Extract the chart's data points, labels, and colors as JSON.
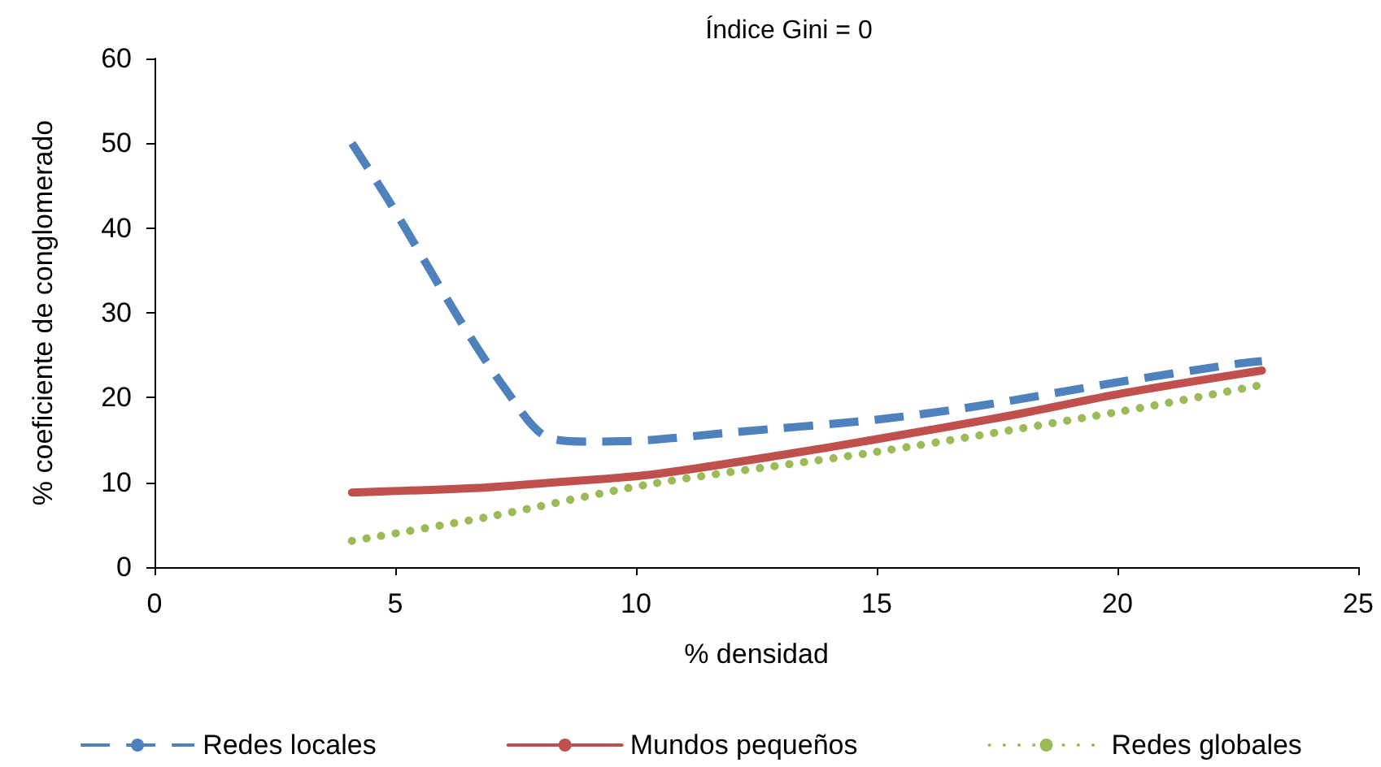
{
  "chart_data": {
    "type": "line",
    "title": "Índice Gini = 0",
    "xlabel": "% densidad",
    "ylabel": "% coeficiente de conglomerado",
    "xlim": [
      0,
      25
    ],
    "xticks": [
      0,
      5,
      10,
      15,
      20,
      25
    ],
    "ylim": [
      0,
      60
    ],
    "yticks": [
      0,
      10,
      20,
      30,
      40,
      50,
      60
    ],
    "grid": false,
    "legend": "bottom",
    "marker": "none",
    "series": [
      {
        "name": "Redes locales",
        "color": "#4f81bd",
        "line_style": "dashed",
        "x": [
          4.1,
          4.9,
          6.4,
          7.3,
          8.1,
          9.0,
          10.3,
          12,
          15,
          17.1,
          20.1,
          22.5,
          23
        ],
        "values": [
          50,
          42.9,
          28.6,
          20.9,
          15.5,
          14.8,
          15,
          15.9,
          17.4,
          19,
          21.9,
          24,
          24.3
        ]
      },
      {
        "name": "Mundos pequeños",
        "color": "#c0504d",
        "line_style": "solid",
        "x": [
          4.1,
          6.9,
          8.3,
          10.3,
          13,
          15,
          17.7,
          20.1,
          23
        ],
        "values": [
          8.8,
          9.4,
          10,
          10.9,
          13.2,
          15.1,
          17.8,
          20.5,
          23.2
        ]
      },
      {
        "name": "Redes globales",
        "color": "#9bbb59",
        "line_style": "dotted",
        "x": [
          4.1,
          6.9,
          10.3,
          15,
          20.1,
          23
        ],
        "values": [
          3.1,
          5.9,
          9.8,
          13.6,
          18.4,
          21.5
        ]
      }
    ]
  }
}
